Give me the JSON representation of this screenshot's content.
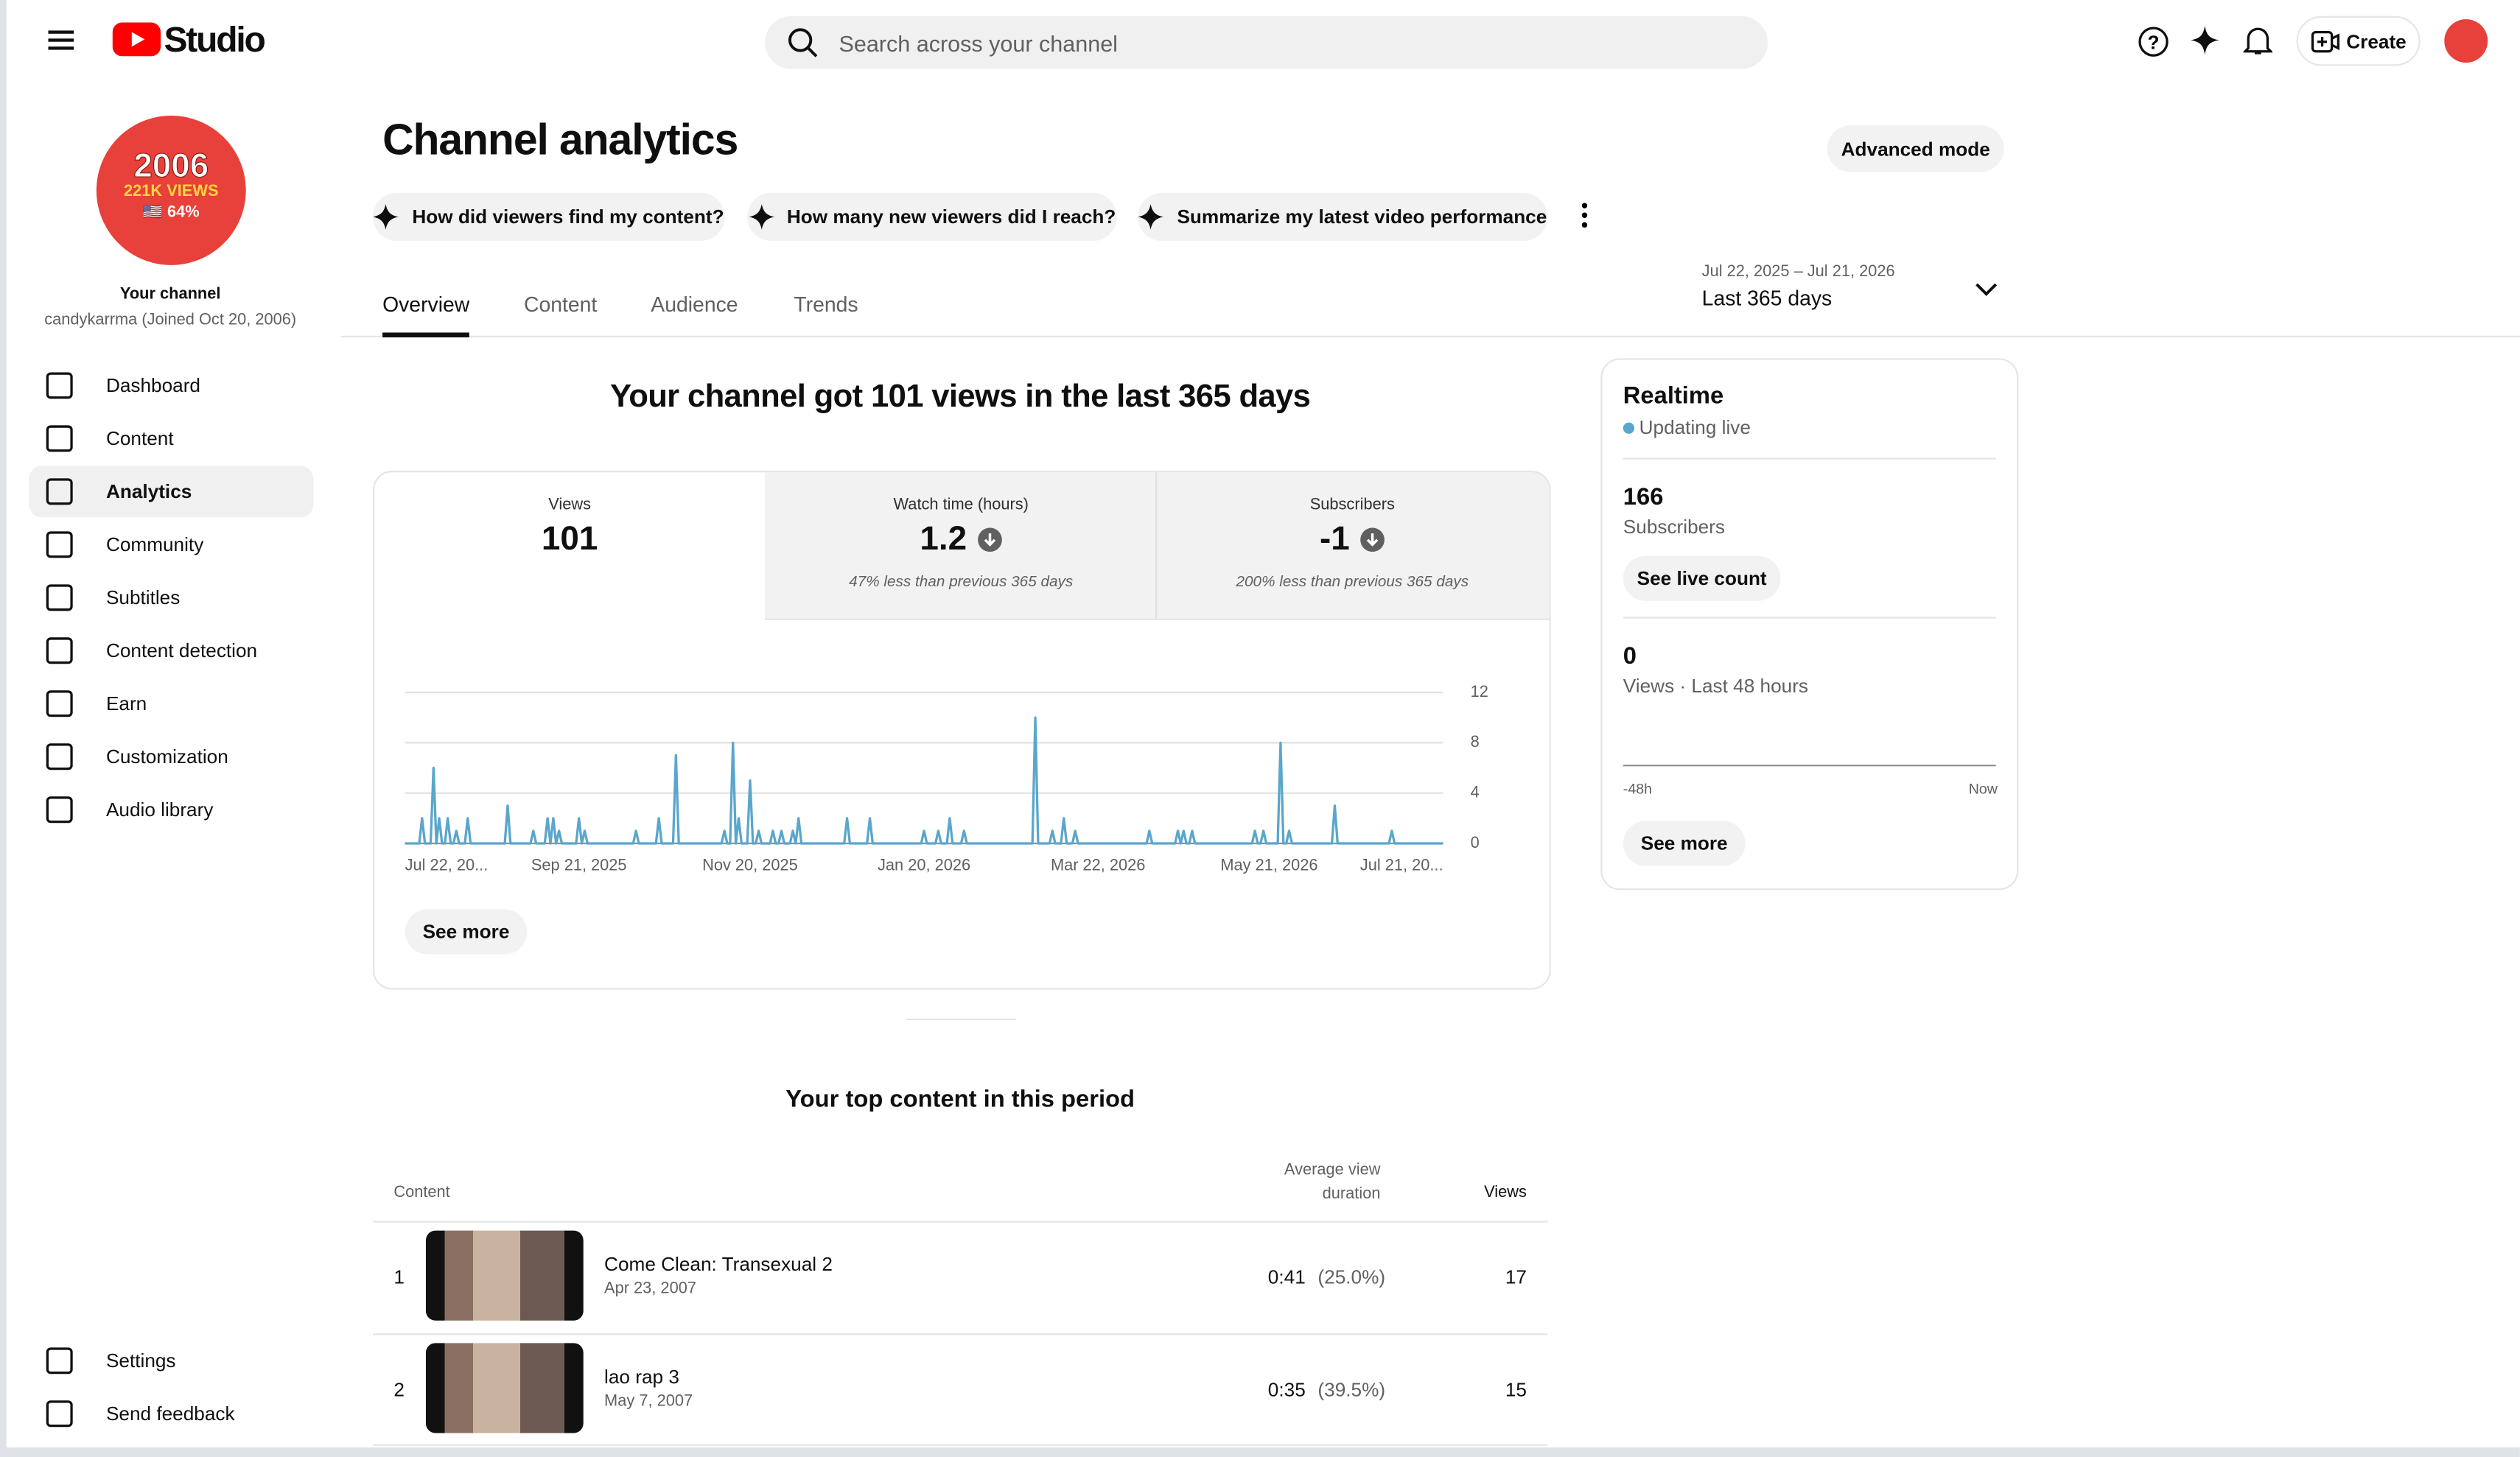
{
  "header": {
    "logo_text": "Studio",
    "search_placeholder": "Search across your channel",
    "create_button": "Create"
  },
  "sidebar": {
    "avatar_lines": [
      "2006",
      "221K VIEWS",
      "🇺🇸 64%"
    ],
    "channel_label": "Your channel",
    "channel_info": "candykarrma (Joined Oct 20, 2006)",
    "nav": [
      "Dashboard",
      "Content",
      "Analytics",
      "Community",
      "Subtitles",
      "Content detection",
      "Earn",
      "Customization",
      "Audio library"
    ],
    "footer_nav": [
      "Settings",
      "Send feedback"
    ]
  },
  "page": {
    "title": "Channel analytics",
    "advanced_button": "Advanced mode",
    "prompts": [
      "How did viewers find my content?",
      "How many new viewers did I reach?",
      "Summarize my latest video performance"
    ],
    "tabs": [
      "Overview",
      "Content",
      "Audience",
      "Trends"
    ],
    "date_range": {
      "dates": "Jul 22, 2025 – Jul 21, 2026",
      "label": "Last 365 days"
    }
  },
  "overview": {
    "headline": "Your channel got 101 views in the last 365 days",
    "metrics": [
      {
        "label": "Views",
        "value": 101
      },
      {
        "label": "Watch time (hours)",
        "value": 1.2,
        "note": "47% less than previous 365 days"
      },
      {
        "label": "Subscribers",
        "value": -1,
        "note": "200% less than previous 365 days"
      }
    ],
    "see_more": "See more"
  },
  "chart_data": {
    "type": "line",
    "color": "#5aa6cc",
    "grid": true,
    "ylim": [
      0,
      12
    ],
    "yticks": [
      0,
      4,
      8,
      12
    ],
    "xlim": [
      0,
      364
    ],
    "xticks": [
      {
        "value": 0,
        "label": "Jul 22, 20..."
      },
      {
        "value": 61,
        "label": "Sep 21, 2025"
      },
      {
        "value": 121,
        "label": "Nov 20, 2025"
      },
      {
        "value": 182,
        "label": "Jan 20, 2026"
      },
      {
        "value": 243,
        "label": "Mar 22, 2026"
      },
      {
        "value": 303,
        "label": "May 21, 2026"
      },
      {
        "value": 364,
        "label": "Jul 21, 20..."
      }
    ],
    "values": [
      0,
      0,
      0,
      0,
      0,
      0,
      2,
      0,
      0,
      0,
      6,
      0,
      2,
      0,
      0,
      2,
      0,
      0,
      1,
      0,
      0,
      0,
      2,
      0,
      0,
      0,
      0,
      0,
      0,
      0,
      0,
      0,
      0,
      0,
      0,
      0,
      3,
      0,
      0,
      0,
      0,
      0,
      0,
      0,
      0,
      1,
      0,
      0,
      0,
      0,
      2,
      0,
      2,
      0,
      1,
      0,
      0,
      0,
      0,
      0,
      0,
      2,
      0,
      1,
      0,
      0,
      0,
      0,
      0,
      0,
      0,
      0,
      0,
      0,
      0,
      0,
      0,
      0,
      0,
      0,
      0,
      1,
      0,
      0,
      0,
      0,
      0,
      0,
      0,
      2,
      0,
      0,
      0,
      0,
      0,
      7,
      0,
      0,
      0,
      0,
      0,
      0,
      0,
      0,
      0,
      0,
      0,
      0,
      0,
      0,
      0,
      0,
      1,
      0,
      0,
      8,
      0,
      2,
      0,
      0,
      0,
      5,
      0,
      0,
      1,
      0,
      0,
      0,
      0,
      1,
      0,
      0,
      1,
      0,
      0,
      0,
      1,
      0,
      2,
      0,
      0,
      0,
      0,
      0,
      0,
      0,
      0,
      0,
      0,
      0,
      0,
      0,
      0,
      0,
      0,
      2,
      0,
      0,
      0,
      0,
      0,
      0,
      0,
      2,
      0,
      0,
      0,
      0,
      0,
      0,
      0,
      0,
      0,
      0,
      0,
      0,
      0,
      0,
      0,
      0,
      0,
      0,
      1,
      0,
      0,
      0,
      0,
      1,
      0,
      0,
      0,
      2,
      0,
      0,
      0,
      0,
      1,
      0,
      0,
      0,
      0,
      0,
      0,
      0,
      0,
      0,
      0,
      0,
      0,
      0,
      0,
      0,
      0,
      0,
      0,
      0,
      0,
      0,
      0,
      0,
      0,
      10,
      0,
      0,
      0,
      0,
      0,
      1,
      0,
      0,
      0,
      2,
      0,
      0,
      0,
      1,
      0,
      0,
      0,
      0,
      0,
      0,
      0,
      0,
      0,
      0,
      0,
      0,
      0,
      0,
      0,
      0,
      0,
      0,
      0,
      0,
      0,
      0,
      0,
      0,
      0,
      1,
      0,
      0,
      0,
      0,
      0,
      0,
      0,
      0,
      0,
      1,
      0,
      1,
      0,
      0,
      1,
      0,
      0,
      0,
      0,
      0,
      0,
      0,
      0,
      0,
      0,
      0,
      0,
      0,
      0,
      0,
      0,
      0,
      0,
      0,
      0,
      0,
      1,
      0,
      0,
      1,
      0,
      0,
      0,
      0,
      0,
      8,
      0,
      0,
      1,
      0,
      0,
      0,
      0,
      0,
      0,
      0,
      0,
      0,
      0,
      0,
      0,
      0,
      0,
      0,
      3,
      0,
      0,
      0,
      0,
      0,
      0,
      0,
      0,
      0,
      0,
      0,
      0,
      0,
      0,
      0,
      0,
      0,
      0,
      0,
      1,
      0,
      0,
      0,
      0,
      0,
      0,
      0,
      0,
      0,
      0,
      0,
      0,
      0,
      0,
      0,
      0,
      0,
      0
    ]
  },
  "realtime": {
    "title": "Realtime",
    "status": "Updating live",
    "subscribers": 166,
    "subscribers_label": "Subscribers",
    "live_count_button": "See live count",
    "views": 0,
    "views_label": "Views · Last 48 hours",
    "axis_start": "-48h",
    "axis_end": "Now",
    "see_more": "See more"
  },
  "top_content": {
    "title": "Your top content in this period",
    "columns": [
      "Content",
      "Average view duration",
      "Views"
    ],
    "rows": [
      {
        "rank": 1,
        "title": "Come Clean: Transexual 2",
        "date": "Apr 23, 2007",
        "duration": "0:41",
        "percent": "(25.0%)",
        "views": 17
      },
      {
        "rank": 2,
        "title": "lao rap 3",
        "date": "May 7, 2007",
        "duration": "0:35",
        "percent": "(39.5%)",
        "views": 15
      }
    ]
  }
}
